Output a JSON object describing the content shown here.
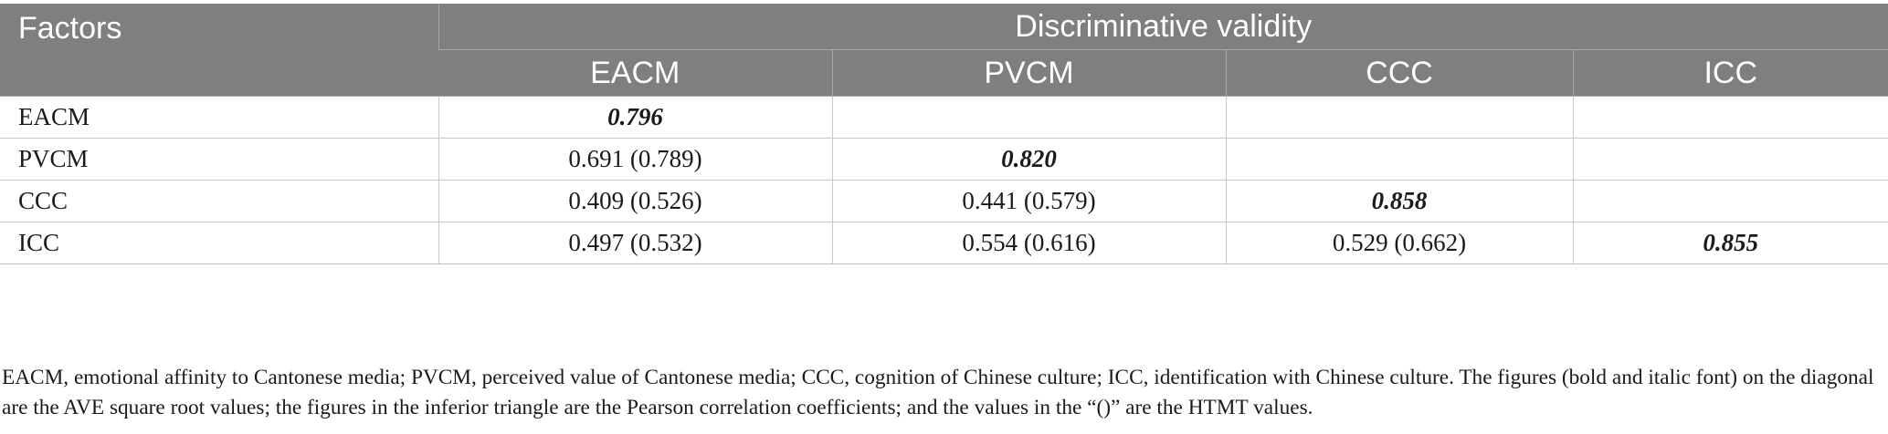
{
  "table": {
    "header": {
      "factors": "Factors",
      "group": "Discriminative validity",
      "columns": [
        "EACM",
        "PVCM",
        "CCC",
        "ICC"
      ]
    },
    "rows": [
      {
        "factor": "EACM",
        "cells": [
          "0.796",
          "",
          "",
          ""
        ]
      },
      {
        "factor": "PVCM",
        "cells": [
          "0.691 (0.789)",
          "0.820",
          "",
          ""
        ]
      },
      {
        "factor": "CCC",
        "cells": [
          "0.409 (0.526)",
          "0.441 (0.579)",
          "0.858",
          ""
        ]
      },
      {
        "factor": "ICC",
        "cells": [
          "0.497 (0.532)",
          "0.554 (0.616)",
          "0.529 (0.662)",
          "0.855"
        ]
      }
    ]
  },
  "note": "EACM, emotional affinity to Cantonese media; PVCM, perceived value of Cantonese media; CCC, cognition of Chinese culture; ICC, identification with Chinese culture. The figures (bold and italic font) on the diagonal are the AVE square root values; the figures in the inferior triangle are the Pearson correlation coefficients; and the values in the “()” are the HTMT values."
}
